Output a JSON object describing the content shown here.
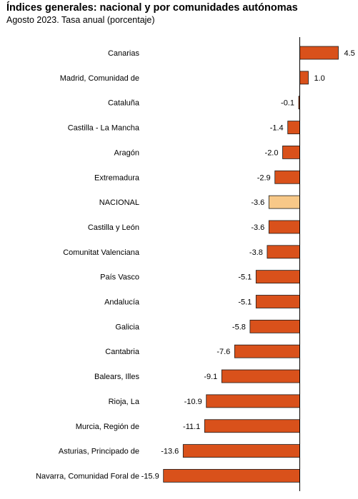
{
  "header": {
    "title": "Índices generales: nacional y por comunidades autónomas",
    "subtitle": "Agosto 2023. Tasa anual (porcentaje)"
  },
  "chart_data": {
    "type": "bar",
    "orientation": "horizontal",
    "title": "Índices generales: nacional y por comunidades autónomas",
    "subtitle": "Agosto 2023. Tasa anual (porcentaje)",
    "xlabel": "",
    "ylabel": "",
    "xlim": [
      -16,
      5.5
    ],
    "grid": false,
    "legend": "none",
    "categories": [
      "Canarias",
      "Madrid, Comunidad de",
      "Cataluña",
      "Castilla - La Mancha",
      "Aragón",
      "Extremadura",
      "NACIONAL",
      "Castilla y León",
      "Comunitat Valenciana",
      "País Vasco",
      "Andalucía",
      "Galicia",
      "Cantabria",
      "Balears, Illes",
      "Rioja, La",
      "Murcia, Región de",
      "Asturias, Principado de",
      "Navarra, Comunidad Foral de"
    ],
    "values": [
      4.5,
      1.0,
      -0.1,
      -1.4,
      -2.0,
      -2.9,
      -3.6,
      -3.6,
      -3.8,
      -5.1,
      -5.1,
      -5.8,
      -7.6,
      -9.1,
      -10.9,
      -11.1,
      -13.6,
      -15.9
    ],
    "value_labels": [
      "4.5",
      "1.0",
      "-0.1",
      "-1.4",
      "-2.0",
      "-2.9",
      "-3.6",
      "-3.6",
      "-3.8",
      "-5.1",
      "-5.1",
      "-5.8",
      "-7.6",
      "-9.1",
      "-10.9",
      "-11.1",
      "-13.6",
      "-15.9"
    ],
    "highlight_category": "NACIONAL",
    "colors": {
      "bar": "#d9511b",
      "highlight": "#f7c888",
      "outline": "#1a1a1a",
      "axis": "#000000"
    }
  }
}
